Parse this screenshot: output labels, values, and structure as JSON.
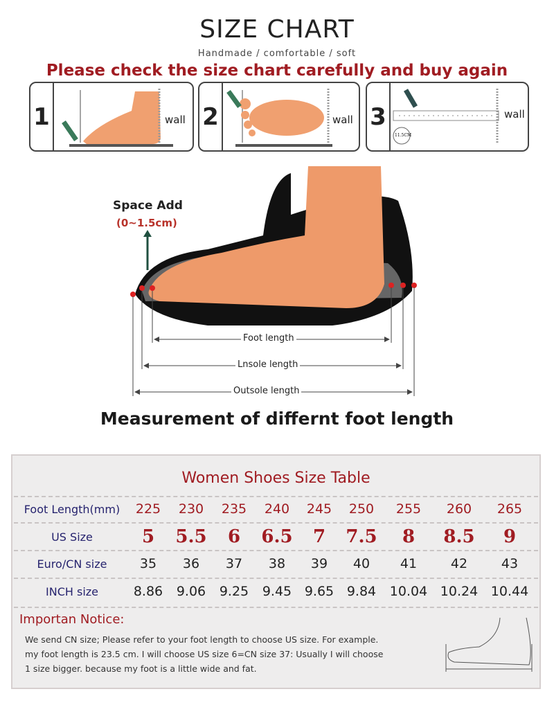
{
  "header": {
    "title": "SIZE CHART",
    "subtitle": "Handmade / comfortable / soft",
    "headline": "Please check the size chart carefully and buy again"
  },
  "steps": [
    {
      "number": "1",
      "wall": "wall"
    },
    {
      "number": "2",
      "wall": "wall"
    },
    {
      "number": "3",
      "wall": "wall",
      "badge": "11.5CM"
    }
  ],
  "diagram": {
    "space_label": "Space Add",
    "space_value": "(0~1.5cm)",
    "foot_length": "Foot length",
    "insole_length": "Lnsole length",
    "outsole_length": "Outsole length",
    "caption": "Measurement of differnt foot length"
  },
  "table": {
    "title": "Women Shoes Size Table",
    "rows": [
      {
        "label": "Foot Length(mm)",
        "values": [
          "225",
          "230",
          "235",
          "240",
          "245",
          "250",
          "255",
          "260",
          "265"
        ]
      },
      {
        "label": "US Size",
        "values": [
          "5",
          "5.5",
          "6",
          "6.5",
          "7",
          "7.5",
          "8",
          "8.5",
          "9"
        ]
      },
      {
        "label": "Euro/CN size",
        "values": [
          "35",
          "36",
          "37",
          "38",
          "39",
          "40",
          "41",
          "42",
          "43"
        ]
      },
      {
        "label": "INCH size",
        "values": [
          "8.86",
          "9.06",
          "9.25",
          "9.45",
          "9.65",
          "9.84",
          "10.04",
          "10.24",
          "10.44"
        ]
      }
    ],
    "notice_title": "Importan Notice:",
    "notice_lines": [
      "We send CN size; Please refer to your foot length to choose US size. For example.",
      "my foot length is 23.5 cm.  I will choose US size 6=CN size 37: Usually I will choose",
      "1 size bigger.  because my foot is a little wide and fat."
    ]
  },
  "colors": {
    "accent_red": "#a01c22",
    "label_navy": "#26236e",
    "foot": "#f0a070"
  }
}
